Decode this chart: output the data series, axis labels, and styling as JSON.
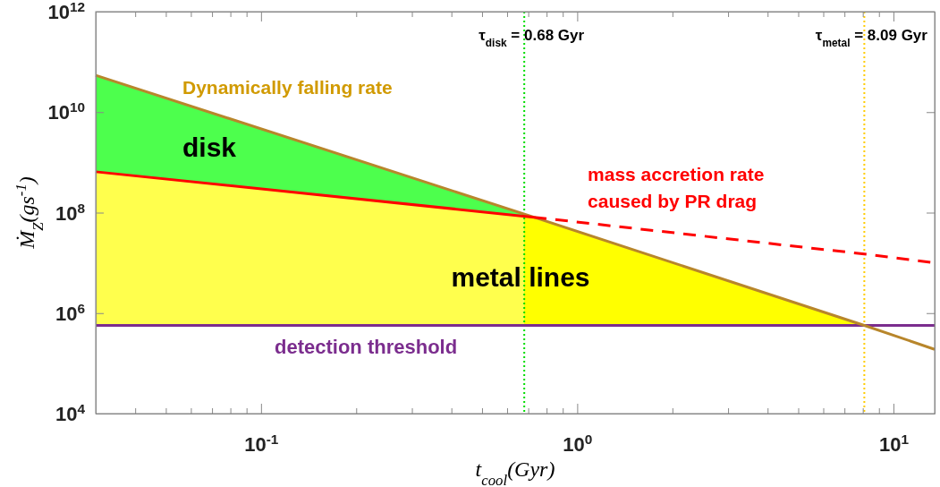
{
  "chart_data": {
    "type": "line",
    "xlabel": "t$_{cool}$(Gyr)",
    "ylabel": "Ṁ$_{Z}$(gs$^{-1}$)",
    "log": "xy",
    "grid": false,
    "xlim": [
      0.03,
      13.5
    ],
    "ylim": [
      10000,
      1000000000000
    ],
    "xticks": [
      {
        "value": 0.04,
        "label": null
      },
      {
        "value": 0.05,
        "label": null
      },
      {
        "value": 0.06,
        "label": null
      },
      {
        "value": 0.07,
        "label": null
      },
      {
        "value": 0.08,
        "label": null
      },
      {
        "value": 0.09,
        "label": null
      },
      {
        "value": 0.1,
        "label": "10$^{-1}$"
      },
      {
        "value": 0.2,
        "label": null
      },
      {
        "value": 0.3,
        "label": null
      },
      {
        "value": 0.4,
        "label": null
      },
      {
        "value": 0.5,
        "label": null
      },
      {
        "value": 0.6,
        "label": null
      },
      {
        "value": 0.7,
        "label": null
      },
      {
        "value": 0.8,
        "label": null
      },
      {
        "value": 0.9,
        "label": null
      },
      {
        "value": 1,
        "label": "10$^{0}$"
      },
      {
        "value": 2,
        "label": null
      },
      {
        "value": 3,
        "label": null
      },
      {
        "value": 4,
        "label": null
      },
      {
        "value": 5,
        "label": null
      },
      {
        "value": 6,
        "label": null
      },
      {
        "value": 7,
        "label": null
      },
      {
        "value": 8,
        "label": null
      },
      {
        "value": 9,
        "label": null
      },
      {
        "value": 10,
        "label": "10$^{1}$"
      }
    ],
    "yticks": [
      {
        "value": 10000,
        "label": "10$^{4}$"
      },
      {
        "value": 1000000,
        "label": "10$^{6}$"
      },
      {
        "value": 100000000,
        "label": "10$^{8}$"
      },
      {
        "value": 10000000000,
        "label": "10$^{10}$"
      },
      {
        "value": 1000000000000,
        "label": "10$^{12}$"
      }
    ],
    "series": [
      {
        "type": "area",
        "color": "#4dff4d",
        "x": [
          0.03,
          0.73
        ],
        "values": [
          54000000000,
          81000000
        ]
      },
      {
        "type": "area",
        "color": "#ffff4d",
        "x": [
          0.03,
          0.68
        ],
        "values": [
          650000000,
          85000000
        ]
      },
      {
        "type": "area",
        "color": "#ffff00",
        "x": [
          0.68,
          0.73,
          8.09
        ],
        "values": [
          85000000,
          81000000,
          570000
        ]
      },
      {
        "name": "Dynamically falling rate",
        "color": "#b8862b",
        "line_style": "solid",
        "x": [
          0.03,
          0.73,
          8.09,
          13.5
        ],
        "values": [
          54000000000,
          81000000,
          570000,
          190000
        ]
      },
      {
        "color": "#ff0000",
        "line_style": "solid",
        "x": [
          0.03,
          0.73
        ],
        "values": [
          650000000,
          81000000
        ]
      },
      {
        "name": "mass accretion rate caused by PR drag",
        "color": "#ff0000",
        "line_style": "dashed",
        "x": [
          0.73,
          8.09,
          13.5
        ],
        "values": [
          81000000,
          15000000,
          10000000
        ]
      }
    ],
    "ref_lines": [
      {
        "axis": "x",
        "value": 0.68,
        "label": "τ$_{disk}$ = 0.68 Gyr",
        "color": "#00dd00",
        "line_style": "dotted"
      },
      {
        "axis": "x",
        "value": 8.09,
        "label": "τ$_{metal}$ = 8.09 Gyr",
        "color": "#ffcc00",
        "line_style": "dotted"
      },
      {
        "axis": "y",
        "value": 570000,
        "label": "detection threshold",
        "color": "#7b2d8e",
        "line_style": "solid"
      }
    ],
    "annotations": [
      "disk",
      "metal lines"
    ]
  }
}
